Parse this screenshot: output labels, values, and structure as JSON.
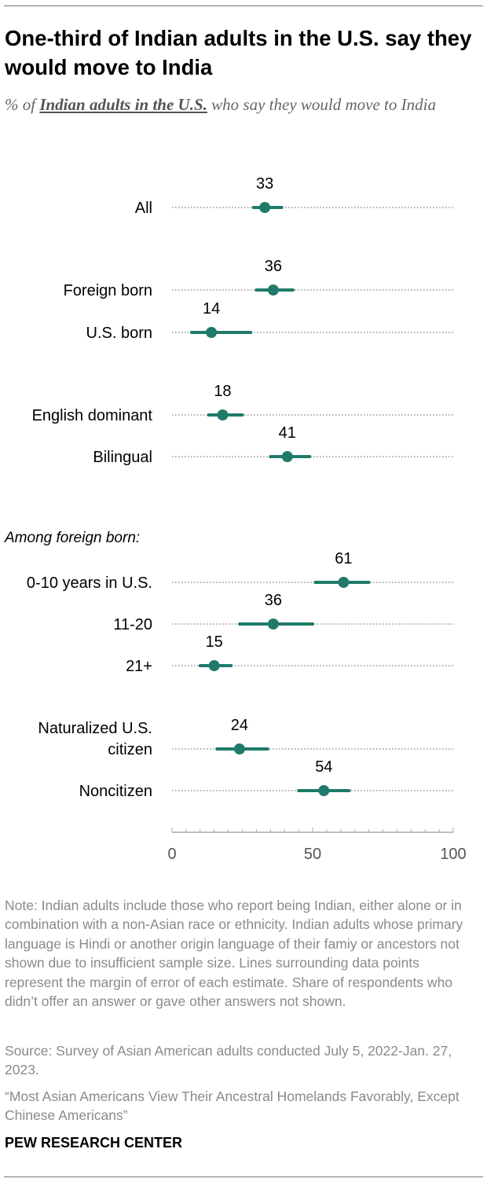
{
  "chart_data": {
    "type": "dot",
    "title": "One-third of Indian adults in the U.S. say they would move to India",
    "subtitle": {
      "prefix": "% of ",
      "emphasis": "Indian adults in the U.S.",
      "suffix": " who say they would move to India"
    },
    "xlim": [
      0,
      100
    ],
    "x_ticks": [
      0,
      50,
      100
    ],
    "grid": "dotted row guides",
    "section_heading": "Among foreign born:",
    "categories": [
      {
        "label": [
          "All"
        ],
        "value": 33,
        "moe_low": 29,
        "moe_high": 39
      },
      {
        "label": [
          "Foreign born"
        ],
        "value": 36,
        "moe_low": 30,
        "moe_high": 43
      },
      {
        "label": [
          "U.S. born"
        ],
        "value": 14,
        "moe_low": 7,
        "moe_high": 28
      },
      {
        "label": [
          "English dominant"
        ],
        "value": 18,
        "moe_low": 13,
        "moe_high": 25
      },
      {
        "label": [
          "Bilingual"
        ],
        "value": 41,
        "moe_low": 35,
        "moe_high": 49
      },
      {
        "label": [
          "0-10 years in U.S."
        ],
        "value": 61,
        "moe_low": 51,
        "moe_high": 70
      },
      {
        "label": [
          "11-20"
        ],
        "value": 36,
        "moe_low": 24,
        "moe_high": 50
      },
      {
        "label": [
          "21+"
        ],
        "value": 15,
        "moe_low": 10,
        "moe_high": 21
      },
      {
        "label": [
          "Naturalized U.S.",
          "citizen"
        ],
        "value": 24,
        "moe_low": 16,
        "moe_high": 34
      },
      {
        "label": [
          "Noncitizen"
        ],
        "value": 54,
        "moe_low": 45,
        "moe_high": 63
      }
    ],
    "colors": {
      "marker": "#1f7a6a",
      "guide": "#9a9a9a",
      "axis": "#aaaaaa",
      "text": "#000000"
    }
  },
  "note": "Note: Indian adults include those who report being Indian, either alone or in combination with a non-Asian race or ethnicity. Indian adults whose primary language is Hindi or another origin language of their famiy or ancestors not shown due to insufficient sample size. Lines surrounding data points represent the margin of error of each estimate. Share of respondents who didn’t offer an answer or gave other answers not shown.",
  "source": "Source: Survey of Asian American adults conducted July 5, 2022-Jan. 27, 2023.",
  "report": "“Most Asian Americans View Their Ancestral Homelands Favorably, Except Chinese Americans”",
  "org": "PEW RESEARCH CENTER"
}
